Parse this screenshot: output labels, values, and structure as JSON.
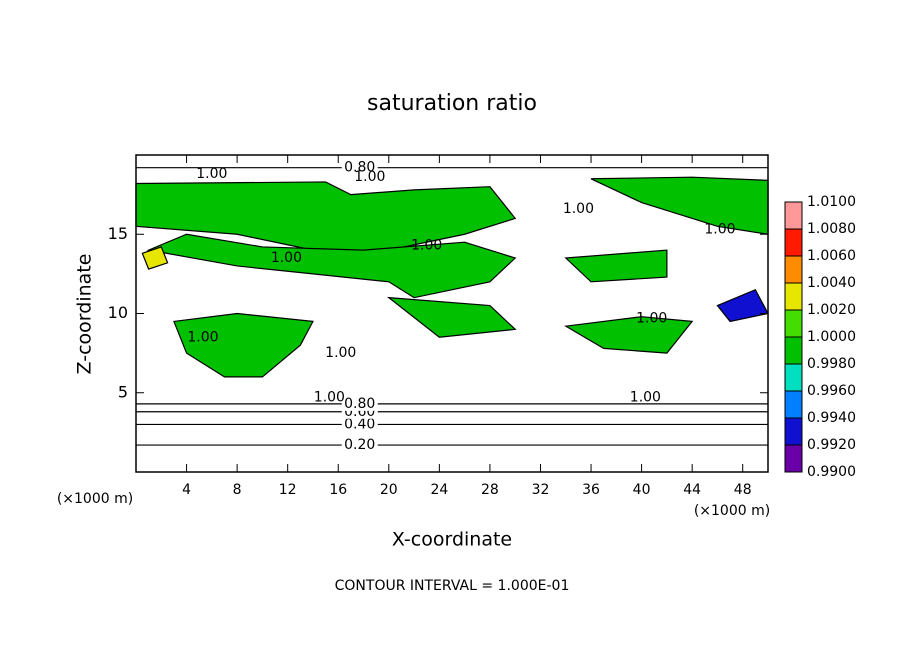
{
  "chart_data": {
    "type": "contour",
    "title": "saturation ratio",
    "xlabel": "X-coordinate",
    "ylabel": "Z-coordinate",
    "xunit": "(×1000 m)",
    "yunit": "(×1000 m)",
    "footer": "CONTOUR INTERVAL = 1.000E-01",
    "xlim": [
      0,
      50
    ],
    "ylim": [
      0,
      20
    ],
    "xticks": [
      4,
      8,
      12,
      16,
      20,
      24,
      28,
      32,
      36,
      40,
      44,
      48
    ],
    "yticks": [
      5,
      10,
      15
    ],
    "colorbar": {
      "ticks": [
        {
          "value": 0.99,
          "label": "0.9900"
        },
        {
          "value": 0.992,
          "label": "0.9920"
        },
        {
          "value": 0.994,
          "label": "0.9940"
        },
        {
          "value": 0.996,
          "label": "0.9960"
        },
        {
          "value": 0.998,
          "label": "0.9980"
        },
        {
          "value": 1.0,
          "label": "1.0000"
        },
        {
          "value": 1.002,
          "label": "1.0020"
        },
        {
          "value": 1.004,
          "label": "1.0040"
        },
        {
          "value": 1.006,
          "label": "1.0060"
        },
        {
          "value": 1.008,
          "label": "1.0080"
        },
        {
          "value": 1.01,
          "label": "1.0100"
        }
      ],
      "colors": [
        "#6a00a8",
        "#1010d0",
        "#0080ff",
        "#00e0c0",
        "#00c000",
        "#44dd00",
        "#e6e600",
        "#ff8c00",
        "#ff1a00",
        "#ff9999"
      ]
    },
    "regions": [
      {
        "value": 0.999,
        "points": [
          [
            0,
            18.2
          ],
          [
            15,
            18.3
          ],
          [
            17,
            17.5
          ],
          [
            22,
            17.8
          ],
          [
            28,
            18
          ],
          [
            30,
            16
          ],
          [
            26,
            15
          ],
          [
            20,
            14
          ],
          [
            14,
            14
          ],
          [
            8,
            15
          ],
          [
            0,
            15.5
          ]
        ]
      },
      {
        "value": 0.999,
        "points": [
          [
            1,
            14
          ],
          [
            8,
            13
          ],
          [
            14,
            12.5
          ],
          [
            20,
            12
          ],
          [
            22,
            11
          ],
          [
            28,
            12
          ],
          [
            30,
            13.5
          ],
          [
            26,
            14.5
          ],
          [
            18,
            14
          ],
          [
            10,
            14.2
          ],
          [
            4,
            15
          ]
        ]
      },
      {
        "value": 0.999,
        "points": [
          [
            3,
            9.5
          ],
          [
            8,
            10
          ],
          [
            14,
            9.5
          ],
          [
            13,
            8
          ],
          [
            10,
            6
          ],
          [
            7,
            6
          ],
          [
            4,
            7.5
          ]
        ]
      },
      {
        "value": 0.999,
        "points": [
          [
            36,
            18.5
          ],
          [
            44,
            18.6
          ],
          [
            50,
            18.4
          ],
          [
            50,
            15
          ],
          [
            46,
            15.5
          ],
          [
            40,
            17
          ]
        ]
      },
      {
        "value": 0.999,
        "points": [
          [
            34,
            13.5
          ],
          [
            42,
            14
          ],
          [
            42,
            12.3
          ],
          [
            36,
            12
          ]
        ]
      },
      {
        "value": 0.999,
        "points": [
          [
            34,
            9.2
          ],
          [
            40,
            9.8
          ],
          [
            44,
            9.5
          ],
          [
            42,
            7.5
          ],
          [
            37,
            7.8
          ]
        ]
      },
      {
        "value": 0.999,
        "points": [
          [
            20,
            11
          ],
          [
            28,
            10.5
          ],
          [
            30,
            9
          ],
          [
            24,
            8.5
          ]
        ]
      },
      {
        "value": 1.003,
        "points": [
          [
            0.5,
            13.8
          ],
          [
            2,
            14.2
          ],
          [
            2.5,
            13.2
          ],
          [
            1,
            12.8
          ]
        ]
      },
      {
        "value": 0.993,
        "points": [
          [
            46,
            10.5
          ],
          [
            49,
            11.5
          ],
          [
            50,
            10
          ],
          [
            47,
            9.5
          ]
        ]
      }
    ],
    "contours": [
      {
        "level": {
          "value": 0.2,
          "label": "0.20"
        },
        "y": 1.7,
        "label_x": 17.7
      },
      {
        "level": {
          "value": 0.4,
          "label": "0.40"
        },
        "y": 3.0,
        "label_x": 17.7
      },
      {
        "level": {
          "value": 0.6,
          "label": "0.60"
        },
        "y": 3.8,
        "label_x": 17.7
      },
      {
        "level": {
          "value": 0.8,
          "label": "0.80"
        },
        "y": 4.3,
        "label_x": 17.7
      },
      {
        "level": {
          "value": 0.8,
          "label": "0.80"
        },
        "y": 19.2,
        "label_x": 17.7
      }
    ],
    "contour_labels": [
      {
        "value": 1.0,
        "label": "1.00",
        "x": 6.0,
        "y": 18.8
      },
      {
        "value": 1.0,
        "label": "1.00",
        "x": 11.9,
        "y": 13.5
      },
      {
        "value": 1.0,
        "label": "1.00",
        "x": 23.0,
        "y": 14.3
      },
      {
        "value": 1.0,
        "label": "1.00",
        "x": 35.0,
        "y": 16.6
      },
      {
        "value": 1.0,
        "label": "1.00",
        "x": 46.2,
        "y": 15.3
      },
      {
        "value": 1.0,
        "label": "1.00",
        "x": 5.3,
        "y": 8.5
      },
      {
        "value": 1.0,
        "label": "1.00",
        "x": 16.2,
        "y": 7.5
      },
      {
        "value": 1.0,
        "label": "1.00",
        "x": 40.8,
        "y": 9.7
      },
      {
        "value": 1.0,
        "label": "1.00",
        "x": 40.3,
        "y": 4.7
      },
      {
        "value": 1.0,
        "label": "1.00",
        "x": 15.3,
        "y": 4.7
      },
      {
        "value": 1.0,
        "label": "1.00",
        "x": 18.5,
        "y": 18.6
      }
    ]
  }
}
